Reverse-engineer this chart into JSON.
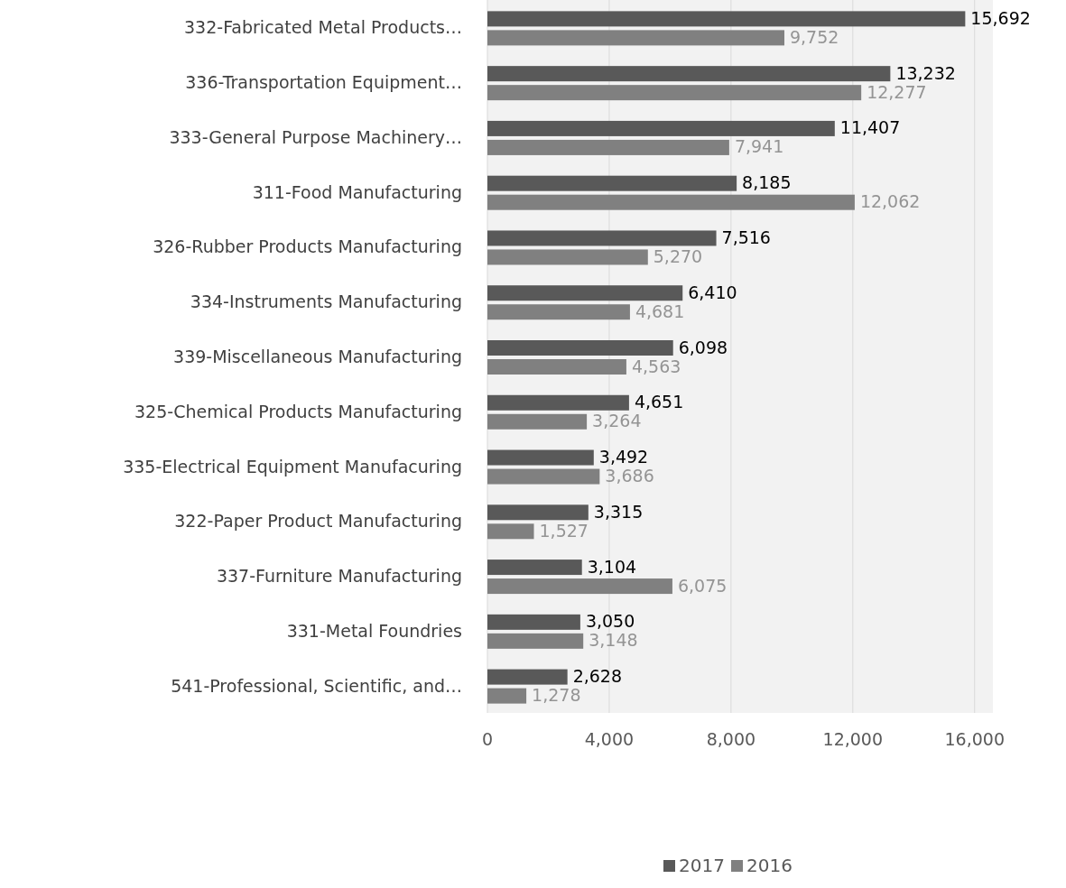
{
  "chart_data": {
    "type": "bar",
    "orientation": "horizontal",
    "categories": [
      "332-Fabricated Metal Products…",
      "336-Transportation Equipment…",
      "333-General Purpose Machinery…",
      "311-Food Manufacturing",
      "326-Rubber Products Manufacturing",
      "334-Instruments Manufacturing",
      "339-Miscellaneous Manufacturing",
      "325-Chemical Products Manufacturing",
      "335-Electrical Equipment Manufacuring",
      "322-Paper Product Manufacturing",
      "337-Furniture Manufacturing",
      "331-Metal Foundries",
      "541-Professional, Scientific, and…"
    ],
    "series": [
      {
        "name": "2017",
        "color": "#595959",
        "values": [
          15692,
          13232,
          11407,
          8185,
          7516,
          6410,
          6098,
          4651,
          3492,
          3315,
          3104,
          3050,
          2628
        ],
        "value_labels": [
          "15,692",
          "13,232",
          "11,407",
          "8,185",
          "7,516",
          "6,410",
          "6,098",
          "4,651",
          "3,492",
          "3,315",
          "3,104",
          "3,050",
          "2,628"
        ]
      },
      {
        "name": "2016",
        "color": "#808080",
        "values": [
          9752,
          12277,
          7941,
          12062,
          5270,
          4681,
          4563,
          3264,
          3686,
          1527,
          6075,
          3148,
          1278
        ],
        "value_labels": [
          "9,752",
          "12,277",
          "7,941",
          "12,062",
          "5,270",
          "4,681",
          "4,563",
          "3,264",
          "3,686",
          "1,527",
          "6,075",
          "3,148",
          "1,278"
        ]
      }
    ],
    "xlim": [
      0,
      16600
    ],
    "xticks": [
      {
        "value": 0,
        "label": "0"
      },
      {
        "value": 4000,
        "label": "4,000"
      },
      {
        "value": 8000,
        "label": "8,000"
      },
      {
        "value": 12000,
        "label": "12,000"
      },
      {
        "value": 16000,
        "label": "16,000"
      }
    ],
    "grid": "x",
    "legend": "bottom"
  }
}
